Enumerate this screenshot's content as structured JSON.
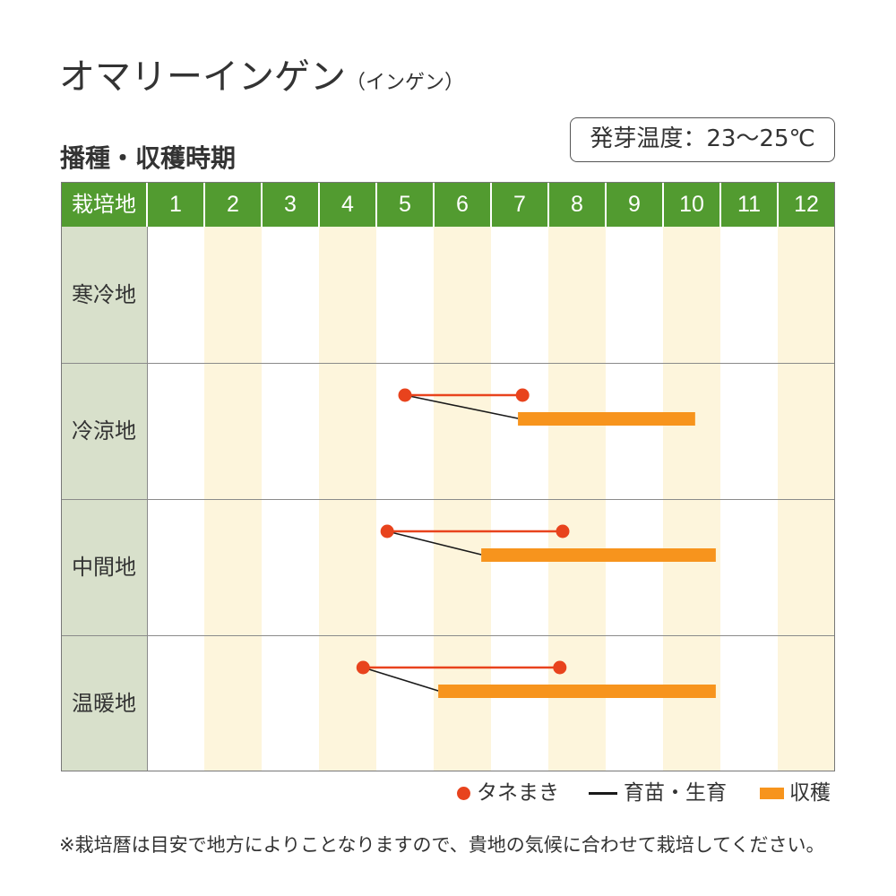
{
  "title": "オマリーインゲン",
  "title_sub": "（インゲン）",
  "germination_temp": "発芽温度：23〜25℃",
  "header_label": "栽培地",
  "note": "※栽培暦は目安で地方によりことなりますので、貴地の気候に合わせて栽培してください。",
  "colors": {
    "header": "#529b30",
    "region_column": "#d8e0cb",
    "alternate_month": "#fdf5dc",
    "sowing": "#e8431d",
    "growing": "#1a1a1a",
    "harvest": "#f7941d"
  },
  "chart_data": {
    "type": "bar",
    "title": "播種・収穫時期",
    "categories": [
      "寒冷地",
      "冷涼地",
      "中間地",
      "温暖地"
    ],
    "x_ticks": [
      "1",
      "2",
      "3",
      "4",
      "5",
      "6",
      "7",
      "8",
      "9",
      "10",
      "11",
      "12"
    ],
    "xlim": [
      1,
      13
    ],
    "grid": false,
    "legend_position": "bottom-right",
    "series": [
      {
        "name": "タネまき",
        "values": [
          null,
          [
            5.5,
            7.55
          ],
          [
            5.19,
            8.25
          ],
          [
            4.77,
            8.2
          ]
        ]
      },
      {
        "name": "育苗・生育",
        "values": [
          null,
          [
            5.5,
            7.47
          ],
          [
            5.19,
            6.83
          ],
          [
            4.77,
            6.08
          ]
        ]
      },
      {
        "name": "収穫",
        "values": [
          null,
          [
            7.47,
            10.56
          ],
          [
            6.83,
            10.92
          ],
          [
            6.08,
            10.92
          ]
        ]
      }
    ]
  }
}
